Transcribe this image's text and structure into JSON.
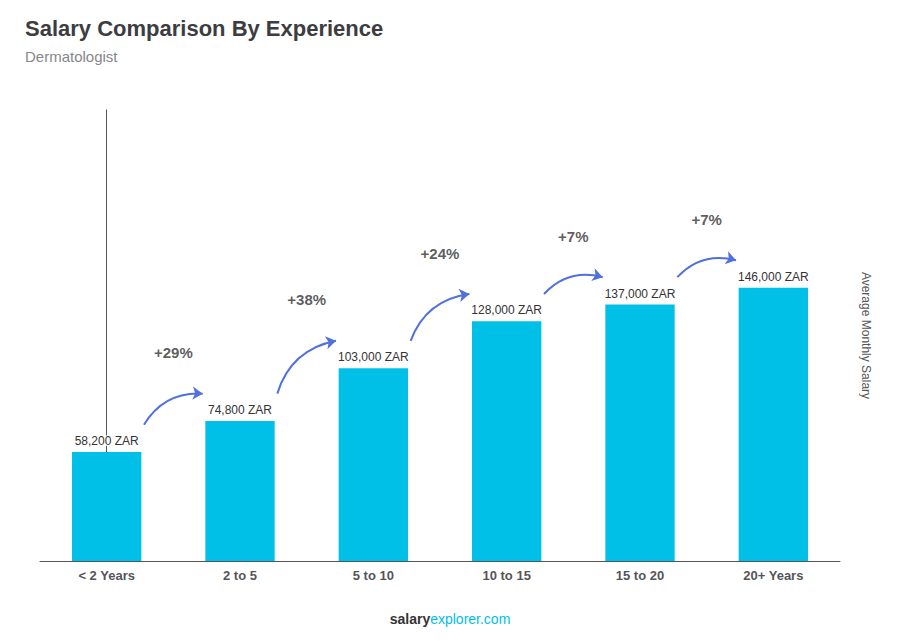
{
  "chart_data": {
    "type": "bar",
    "title": "Salary Comparison By Experience",
    "subtitle": "Dermatologist",
    "y_label": "Average Monthly Salary",
    "categories": [
      "< 2 Years",
      "2 to 5",
      "5 to 10",
      "10 to 15",
      "15 to 20",
      "20+ Years"
    ],
    "values": [
      58200,
      74800,
      103000,
      128000,
      137000,
      146000
    ],
    "value_labels": [
      "58,200 ZAR",
      "74,800 ZAR",
      "103,000 ZAR",
      "128,000 ZAR",
      "137,000 ZAR",
      "146,000 ZAR"
    ],
    "data_labels": true,
    "color": "#00C0E8",
    "ylim": [
      0,
      240900
    ],
    "tick_labels": "x",
    "grid": false,
    "annotations": [
      "+29%",
      "+38%",
      "+24%",
      "+7%",
      "+7%"
    ],
    "footer": [
      "salary",
      "explorer.com"
    ]
  }
}
